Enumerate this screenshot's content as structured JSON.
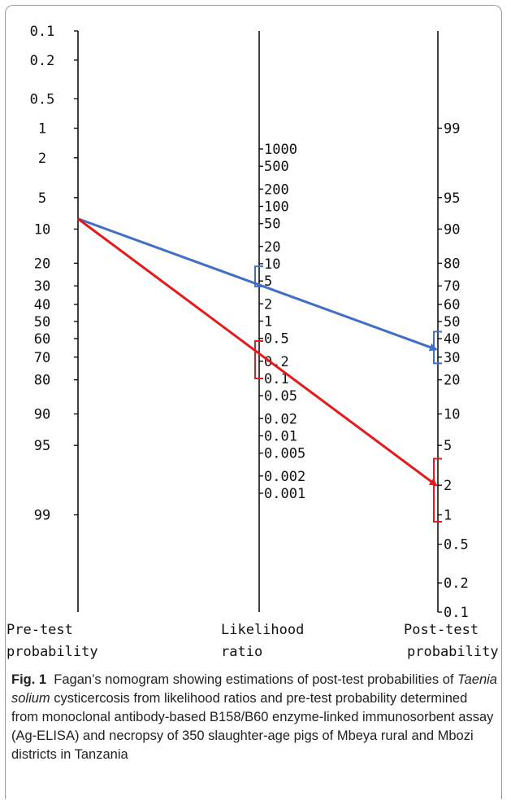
{
  "chart_data": {
    "type": "nomogram",
    "axes": {
      "pretest": {
        "title_line1": "Pre-test",
        "title_line2": "probability",
        "ticks": [
          "0.1",
          "0.2",
          "0.5",
          "1",
          "2",
          "5",
          "10",
          "20",
          "30",
          "40",
          "50",
          "60",
          "70",
          "80",
          "90",
          "95",
          "99"
        ]
      },
      "likelihood": {
        "title_line1": "Likelihood",
        "title_line2": "ratio",
        "ticks": [
          "1000",
          "500",
          "200",
          "100",
          "50",
          "20",
          "10",
          "5",
          "2",
          "1",
          "0.5",
          "0.2",
          "0.1",
          "0.05",
          "0.02",
          "0.01",
          "0.005",
          "0.002",
          "0.001"
        ]
      },
      "posttest": {
        "title_line1": "Post-test",
        "title_line2": "probability",
        "ticks": [
          "99",
          "95",
          "90",
          "80",
          "70",
          "60",
          "50",
          "40",
          "30",
          "20",
          "10",
          "5",
          "2",
          "1",
          "0.5",
          "0.2",
          "0.1"
        ]
      }
    },
    "lines": [
      {
        "color": "#3f6fc6",
        "pretest": 8,
        "lr": 6,
        "posttest": 34,
        "lr_ci": [
          4,
          9
        ],
        "posttest_ci": [
          27,
          44
        ]
      },
      {
        "color": "#e41a1c",
        "pretest": 8,
        "lr": 0.21,
        "posttest": 2,
        "lr_ci": [
          0.1,
          0.45
        ],
        "posttest_ci": [
          0.85,
          3.7
        ]
      }
    ]
  },
  "caption": {
    "fig_label": "Fig. 1",
    "text_before_italic": "Fagan’s nomogram showing estimations of post-test probabilities of ",
    "italic_text": "Taenia solium",
    "text_after_italic": " cysticercosis from likelihood ratios and pre-test probability determined from monoclonal antibody-based B158/B60 enzyme-linked immunosorbent assay (Ag-ELISA) and necropsy of 350 slaughter-age pigs of Mbeya rural and Mbozi districts in Tanzania"
  }
}
